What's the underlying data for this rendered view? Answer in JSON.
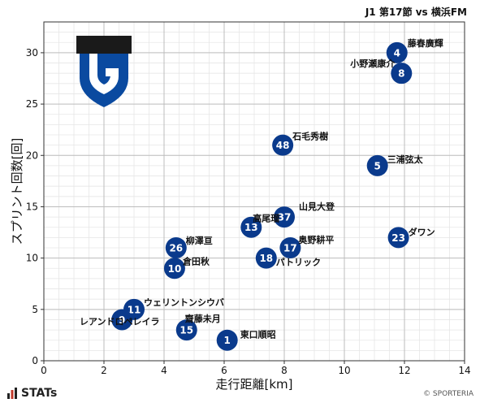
{
  "header": {
    "title": "J1 第17節 vs 横浜FM"
  },
  "footer": {
    "brand": "STATs",
    "credit": "© SPORTERIA"
  },
  "colors": {
    "marker": "#0a3a8c",
    "marker_text": "#ffffff",
    "grid": "#cccccc",
    "crest_top": "#1a1a1a",
    "crest_body": "#0a4aa0"
  },
  "chart_data": {
    "type": "scatter",
    "xlabel": "走行距離[km]",
    "ylabel": "スプリント回数[回]",
    "xlim": [
      0,
      14
    ],
    "ylim": [
      0,
      33
    ],
    "xticks": [
      0,
      2,
      4,
      6,
      8,
      10,
      12,
      14
    ],
    "yticks": [
      0,
      5,
      10,
      15,
      20,
      25,
      30
    ],
    "grid": true,
    "points": [
      {
        "number": "4",
        "name": "藤春廣輝",
        "x": 11.75,
        "y": 30
      },
      {
        "number": "8",
        "name": "小野瀬康介",
        "x": 11.9,
        "y": 28
      },
      {
        "number": "48",
        "name": "石毛秀樹",
        "x": 7.95,
        "y": 21
      },
      {
        "number": "5",
        "name": "三浦弦太",
        "x": 11.1,
        "y": 19
      },
      {
        "number": "37",
        "name": "山見大登",
        "x": 8.0,
        "y": 14
      },
      {
        "number": "13",
        "name": "高尾瑠",
        "x": 6.9,
        "y": 13
      },
      {
        "number": "23",
        "name": "ダワン",
        "x": 11.8,
        "y": 12
      },
      {
        "number": "17",
        "name": "奥野耕平",
        "x": 8.2,
        "y": 11
      },
      {
        "number": "26",
        "name": "柳澤亘",
        "x": 4.4,
        "y": 11
      },
      {
        "number": "18",
        "name": "パトリック",
        "x": 7.4,
        "y": 10
      },
      {
        "number": "10",
        "name": "倉田秋",
        "x": 4.35,
        "y": 9
      },
      {
        "number": "11",
        "name": "ウェリントンシウバ",
        "x": 3.0,
        "y": 5
      },
      {
        "number": "9",
        "name": "レアンドロペレイラ",
        "x": 2.6,
        "y": 4
      },
      {
        "number": "15",
        "name": "齋藤未月",
        "x": 4.75,
        "y": 3
      },
      {
        "number": "1",
        "name": "東口順昭",
        "x": 6.1,
        "y": 2
      }
    ]
  }
}
